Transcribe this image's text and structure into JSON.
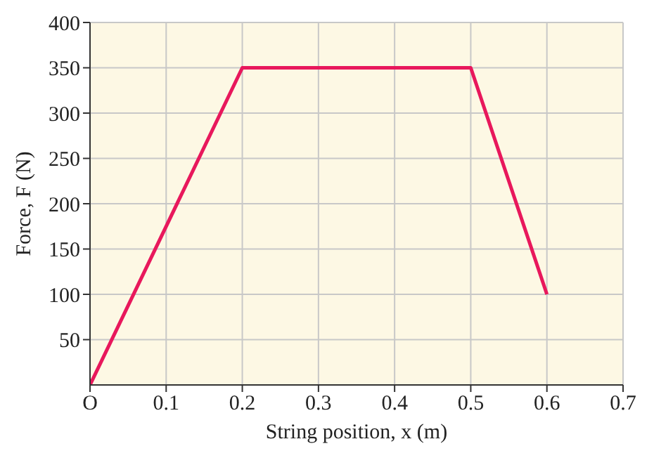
{
  "chart_data": {
    "type": "line",
    "xlabel": "String position, x (m)",
    "ylabel": "Force, F (N)",
    "x": [
      0,
      0.2,
      0.5,
      0.6
    ],
    "series": [
      {
        "color": "#e8185c",
        "values": [
          0,
          350,
          350,
          100
        ]
      }
    ],
    "xlim": [
      0,
      0.7
    ],
    "xticks": [
      {
        "value": 0,
        "label": "O"
      },
      0.1,
      0.2,
      0.3,
      0.4,
      0.5,
      0.6,
      0.7
    ],
    "ylim": [
      0,
      400
    ],
    "yticks": [
      50,
      100,
      150,
      200,
      250,
      300,
      350,
      400
    ],
    "grid": true,
    "marker": "none",
    "line_style": "solid"
  }
}
